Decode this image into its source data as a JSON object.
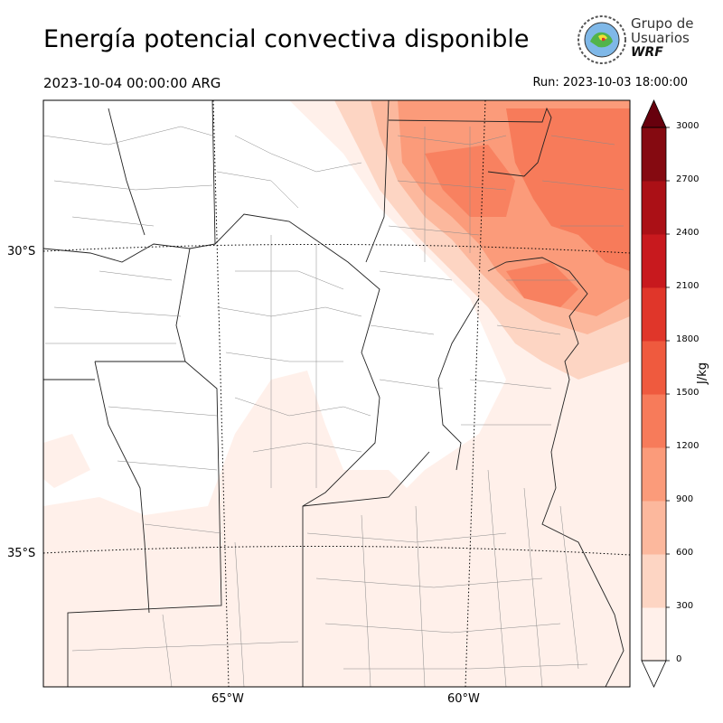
{
  "title": "Energía potencial convectiva disponible",
  "valid_time": "2023-10-04 00:00:00 ARG",
  "run_time": "Run: 2023-10-03 18:00:00",
  "logo": {
    "line1": "Grupo de",
    "line2": "Usuarios",
    "line3": "WRF",
    "icon": "wrf-globe-logo"
  },
  "map": {
    "lat_labels": [
      "30°S",
      "35°S"
    ],
    "lon_labels": [
      "65°W",
      "60°W"
    ]
  },
  "colorbar": {
    "unit": "J/kg",
    "ticks": [
      "0",
      "300",
      "600",
      "900",
      "1200",
      "1500",
      "1800",
      "2100",
      "2400",
      "2700",
      "3000"
    ],
    "colors": [
      "#fff0ea",
      "#fdd5c3",
      "#fcb89d",
      "#fb9b7a",
      "#f77b5a",
      "#ef5a3e",
      "#e0362a",
      "#c8191e",
      "#ab1016",
      "#850a11"
    ],
    "extend_color": "#67000d"
  },
  "chart_data": {
    "type": "heatmap",
    "title": "Energía potencial convectiva disponible",
    "variable_unit": "J/kg",
    "levels": [
      0,
      300,
      600,
      900,
      1200,
      1500,
      1800,
      2100,
      2400,
      2700,
      3000
    ],
    "extend": "max",
    "lat_ticks": [
      "30°S",
      "35°S"
    ],
    "lon_ticks": [
      "65°W",
      "60°W"
    ],
    "regions": [
      {
        "area": "northeast",
        "cape_range": [
          900,
          1500
        ]
      },
      {
        "area": "east-center",
        "cape_range": [
          300,
          900
        ]
      },
      {
        "area": "south and southeast",
        "cape_range": [
          0,
          300
        ]
      }
    ]
  }
}
